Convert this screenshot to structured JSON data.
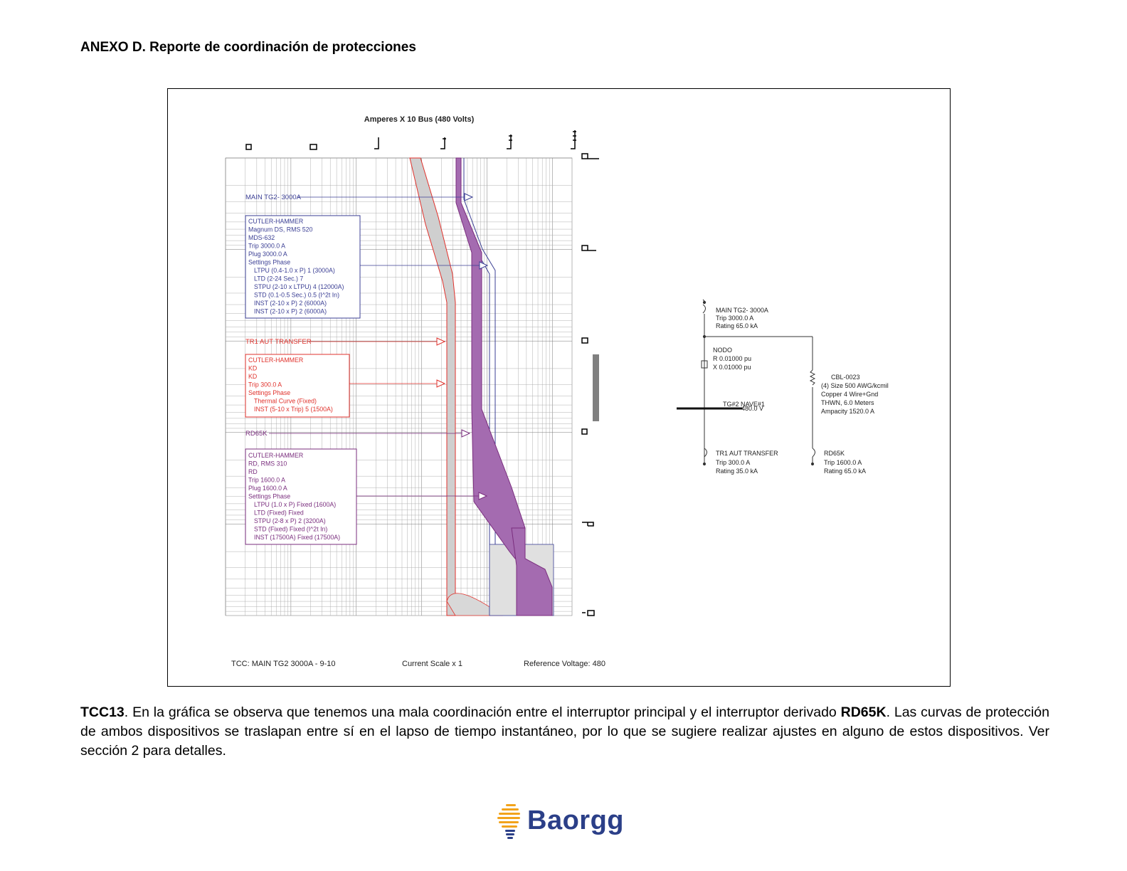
{
  "heading": "ANEXO D. Reporte de coordinación de protecciones",
  "chart_title": "Amperes X 10 Bus (480 Volts)",
  "labels": {
    "main": "MAIN TG2- 3000A",
    "tr1": "TR1 AUT TRANSFER",
    "rd65k": "RD65K"
  },
  "legend_main": [
    "CUTLER-HAMMER",
    "Magnum DS, RMS 520",
    "MDS-632",
    "Trip 3000.0 A",
    "Plug 3000.0 A",
    "Settings Phase",
    "LTPU (0.4-1.0 x P) 1 (3000A)",
    "LTD (2-24 Sec.) 7",
    "STPU (2-10 x LTPU) 4 (12000A)",
    "STD (0.1-0.5 Sec.) 0.5 (I^2t In)",
    "INST (2-10 x P) 2 (6000A)",
    "INST (2-10 x P) 2 (6000A)"
  ],
  "legend_tr1": [
    "CUTLER-HAMMER",
    "KD",
    "KD",
    "Trip 300.0 A",
    "Settings Phase",
    "Thermal Curve (Fixed)",
    "INST (5-10 x Trip) 5 (1500A)"
  ],
  "legend_rd": [
    "CUTLER-HAMMER",
    "RD, RMS 310",
    "RD",
    "Trip 1600.0 A",
    "Plug 1600.0 A",
    "Settings Phase",
    "LTPU (1.0 x P) Fixed (1600A)",
    "LTD (Fixed) Fixed",
    "STPU (2-8 x P) 2 (3200A)",
    "STD (Fixed) Fixed (I^2t In)",
    "INST (17500A) Fixed (17500A)"
  ],
  "footer": {
    "tcc": "TCC:  MAIN TG2 3000A - 9-10",
    "scale": "Current Scale  x 1",
    "voltage": "Reference Voltage: 480"
  },
  "oneline": {
    "main": [
      "MAIN TG2- 3000A",
      "Trip 3000.0 A",
      "Rating 65.0 kA"
    ],
    "nodo": [
      "NODO",
      "R 0.01000 pu",
      "X 0.01000 pu"
    ],
    "bus": [
      "TG#2 NAVE#1",
      "480.0 V"
    ],
    "cable": [
      "CBL-0023",
      "(4) Size 500 AWG/kcmil",
      "Copper 4 Wire+Gnd",
      "THWN, 6.0 Meters",
      "Ampacity 1520.0 A"
    ],
    "tr1": [
      "TR1 AUT TRANSFER",
      "Trip 300.0 A",
      "Rating 35.0 kA"
    ],
    "rd": [
      "RD65K",
      "Trip 1600.0 A",
      "Rating 65.0 kA"
    ]
  },
  "caption": {
    "lead": "TCC13",
    "text1": ". En la gráfica se observa que tenemos una mala coordinación entre el interruptor principal y el interruptor derivado ",
    "bold2": "RD65K",
    "text2": ". Las curvas de protección de ambos dispositivos se traslapan entre sí en el lapso de tiempo instantáneo, por lo que se sugiere realizar ajustes en alguno de estos dispositivos. Ver sección 2 para detalles."
  },
  "brand": "Baorgg",
  "colors": {
    "main": "#3b3f94",
    "tr1": "#e0322c",
    "rd": "#7a2e7e",
    "rd_fill": "#a46bb0"
  }
}
